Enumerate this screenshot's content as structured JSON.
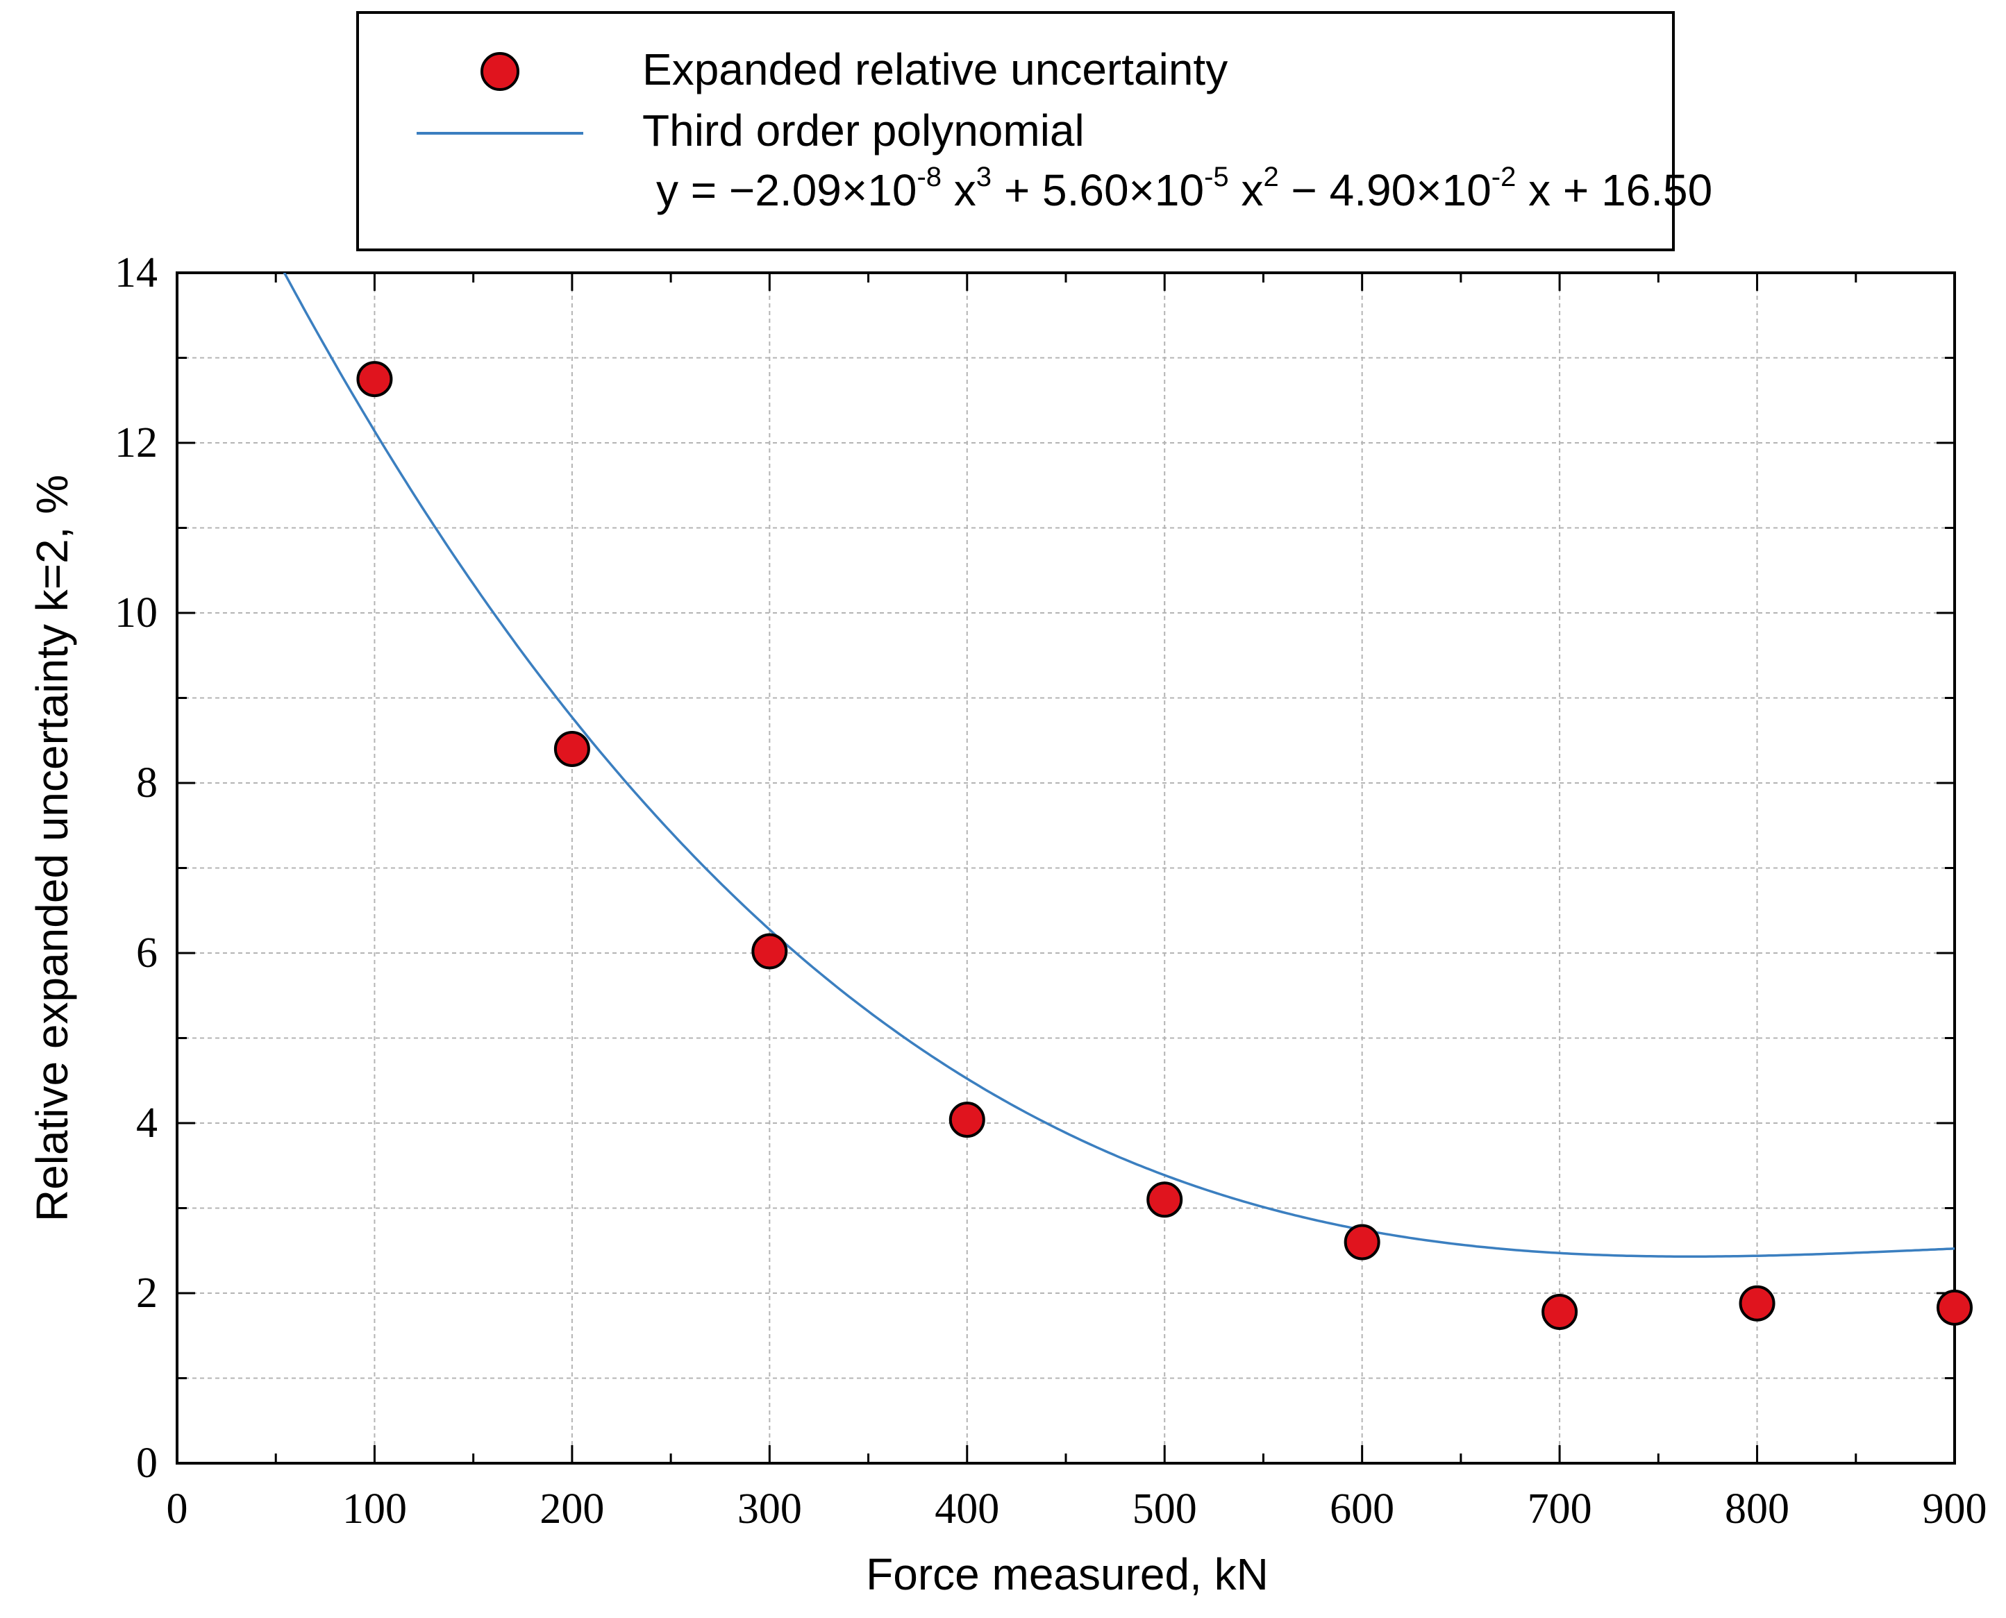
{
  "chart_data": {
    "type": "scatter",
    "xlabel": "Force measured, kN",
    "ylabel": "Relative expanded uncertainty k=2, %",
    "xlim": [
      0,
      900
    ],
    "ylim": [
      0,
      14
    ],
    "x_ticks": [
      0,
      100,
      200,
      300,
      400,
      500,
      600,
      700,
      800,
      900
    ],
    "y_ticks": [
      0,
      2,
      4,
      6,
      8,
      10,
      12,
      14
    ],
    "x_tick_labels": [
      "0",
      "100",
      "200",
      "300",
      "400",
      "500",
      "600",
      "700",
      "800",
      "900"
    ],
    "y_tick_labels": [
      "0",
      "2",
      "4",
      "6",
      "8",
      "10",
      "12",
      "14"
    ],
    "x_minor_step": 50,
    "y_minor_step": 1,
    "grid": true,
    "legend_position": "top",
    "series": [
      {
        "name": "Expanded relative uncertainty",
        "kind": "points",
        "color": "#e0141e",
        "x": [
          100,
          200,
          300,
          400,
          500,
          600,
          700,
          800,
          900
        ],
        "y": [
          12.75,
          8.4,
          6.02,
          4.04,
          3.1,
          2.6,
          1.78,
          1.88,
          1.83
        ]
      },
      {
        "name": "Third order polynomial",
        "kind": "curve",
        "color": "#3b7fc0",
        "coefficients": [
          -2.09e-08,
          5.6e-05,
          -0.049,
          16.5
        ],
        "x_range": [
          0,
          900
        ]
      }
    ],
    "equation": {
      "prefix": "y = −2.09×10",
      "exp1": "-8",
      "mid1": " x",
      "pow1": "3",
      "mid2": " + 5.60×10",
      "exp2": "-5",
      "mid3": " x",
      "pow2": "2",
      "mid4": " − 4.90×10",
      "exp3": "-2",
      "suffix": " x + 16.50"
    }
  }
}
